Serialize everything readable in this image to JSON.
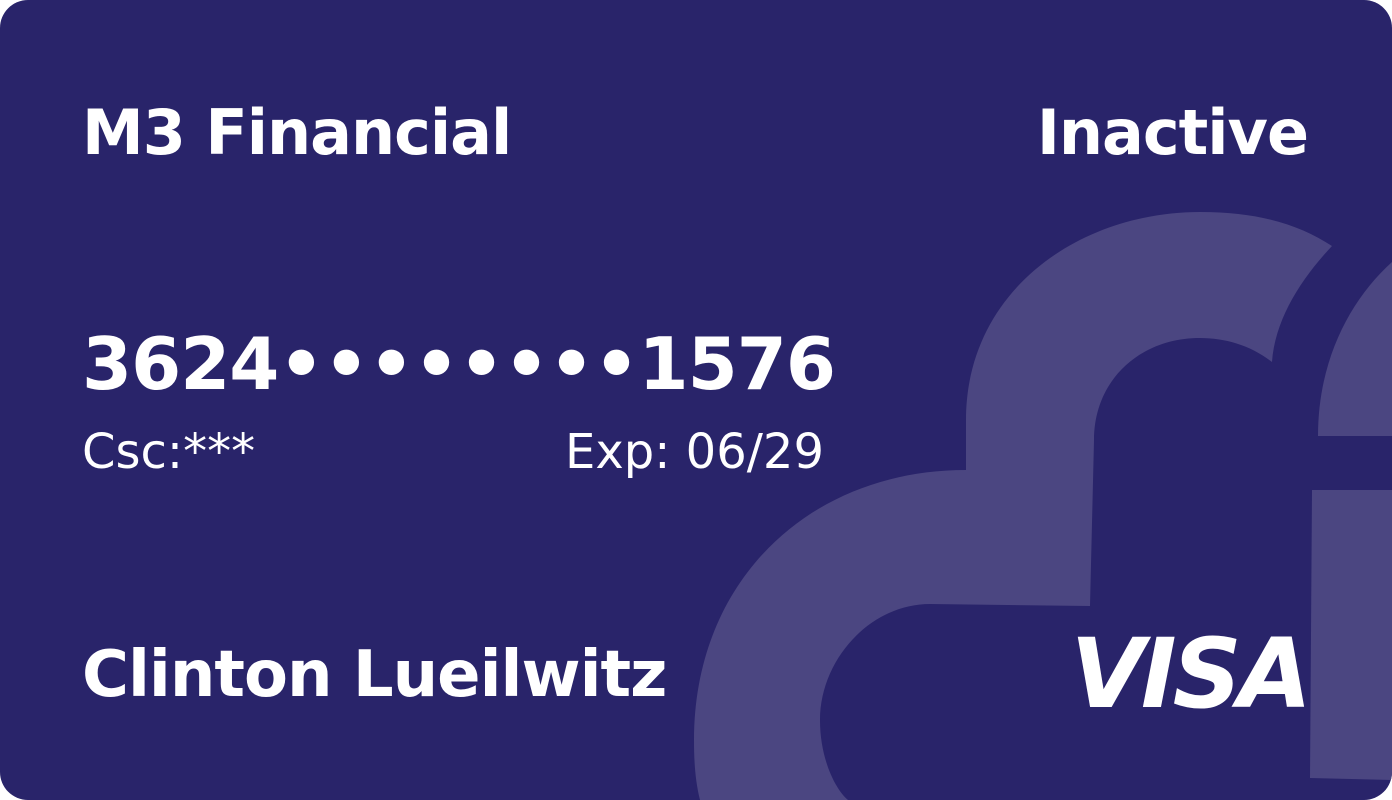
{
  "card": {
    "issuer": "M3 Financial",
    "status": "Inactive",
    "number_first": "3624",
    "number_mask_1": "••••",
    "number_mask_2": "••••",
    "number_last": "1576",
    "csc_label": "Csc:***",
    "expiry_label": "Exp: 06/29",
    "cardholder": "Clinton Lueilwitz",
    "network": "VISA"
  },
  "colors": {
    "background": "#29246a",
    "watermark": "#4b4681",
    "text": "#ffffff"
  },
  "icons": {
    "watermark": "brand-watermark-icon",
    "network_logo": "visa-logo"
  }
}
